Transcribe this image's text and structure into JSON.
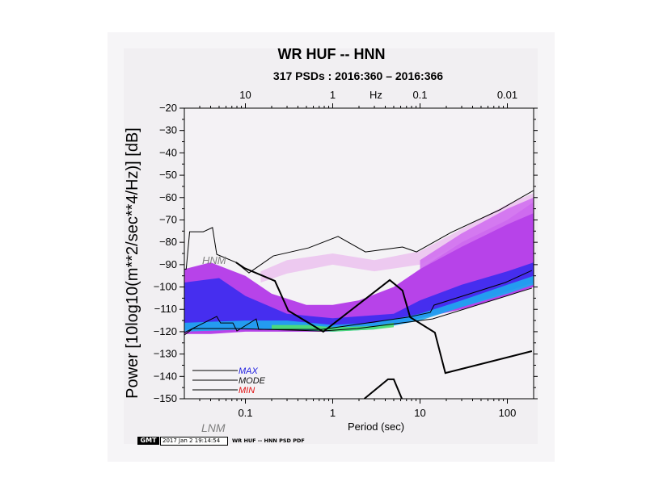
{
  "chart_data": {
    "type": "heatmap",
    "title": "WR HUF -- HNN",
    "subtitle": "317 PSDs : 2016:360 – 2016:366",
    "xlabel": "Period (sec)",
    "ylabel": "Power [10log10(m**2/sec**4/Hz)] [dB]",
    "top_axis_label": "Hz",
    "x_scale": "log",
    "xlim": [
      0.02,
      200
    ],
    "ylim": [
      -150,
      -20
    ],
    "x_ticks": [
      {
        "v": 0.1,
        "label": "0.1"
      },
      {
        "v": 1,
        "label": "1"
      },
      {
        "v": 10,
        "label": "10"
      },
      {
        "v": 100,
        "label": "100"
      }
    ],
    "top_ticks": [
      {
        "v": 0.1,
        "label": "10"
      },
      {
        "v": 1,
        "label": "1"
      },
      {
        "v": 10,
        "label": "0.1"
      },
      {
        "v": 100,
        "label": "0.01"
      }
    ],
    "y_ticks": [
      -20,
      -30,
      -40,
      -50,
      -60,
      -70,
      -80,
      -90,
      -100,
      -110,
      -120,
      -130,
      -140,
      -150
    ],
    "y_tick_labels": [
      "−20",
      "−30",
      "−40",
      "−50",
      "−60",
      "−70",
      "−80",
      "−90",
      "−100",
      "−110",
      "−120",
      "−130",
      "−140",
      "−150"
    ],
    "grid": false,
    "legend": {
      "placement": "bottom-left",
      "entries": [
        {
          "label": "MAX",
          "color": "#2020e0"
        },
        {
          "label": "MODE",
          "color": "#111111"
        },
        {
          "label": "MIN",
          "color": "#e01010"
        }
      ]
    },
    "annotations": [
      {
        "label": "HNM",
        "color": "#808080"
      },
      {
        "label": "LNM",
        "color": "#808080"
      }
    ],
    "pdf_bands": [
      {
        "color": "#ecc4f0",
        "periods": [
          0.15,
          0.3,
          1,
          3,
          10,
          30,
          100,
          200
        ],
        "upper": [
          -93,
          -88,
          -85,
          -88,
          -84,
          -74,
          -63,
          -58
        ],
        "lower": [
          -98,
          -94,
          -90,
          -93,
          -90,
          -80,
          -70,
          -64
        ]
      },
      {
        "color": "#b030e8",
        "periods": [
          0.02,
          0.04,
          0.1,
          0.2,
          0.5,
          1,
          2,
          5,
          10,
          30,
          100,
          200
        ],
        "upper": [
          -92,
          -89,
          -95,
          -103,
          -108,
          -108,
          -106,
          -100,
          -92,
          -80,
          -70,
          -62
        ],
        "lower": [
          -121,
          -121,
          -120,
          -120,
          -120,
          -120,
          -119,
          -117,
          -114,
          -110,
          -104,
          -100
        ]
      },
      {
        "color": "#d070f0",
        "periods": [
          10,
          30,
          100,
          200
        ],
        "upper": [
          -88,
          -76,
          -65,
          -60
        ],
        "lower": [
          -92,
          -82,
          -72,
          -67
        ]
      },
      {
        "color": "#3a2cf0",
        "periods": [
          0.02,
          0.05,
          0.1,
          0.3,
          1,
          5,
          10,
          30,
          100,
          200
        ],
        "upper": [
          -98,
          -96,
          -104,
          -112,
          -114,
          -112,
          -106,
          -99,
          -93,
          -89
        ],
        "lower": [
          -119,
          -119,
          -119,
          -119,
          -119,
          -117,
          -114,
          -109,
          -102,
          -98
        ]
      },
      {
        "color": "#20a8f0",
        "periods": [
          0.02,
          0.1,
          0.3,
          1,
          3,
          10,
          30,
          100,
          200
        ],
        "upper": [
          -116,
          -115,
          -115,
          -117,
          -116,
          -112,
          -106,
          -99,
          -95
        ],
        "lower": [
          -120,
          -119,
          -119,
          -120,
          -119,
          -115,
          -109,
          -103,
          -99
        ]
      },
      {
        "color": "#50e070",
        "periods": [
          0.2,
          0.5,
          1,
          3,
          5
        ],
        "upper": [
          -117,
          -117,
          -118,
          -117.5,
          -116
        ],
        "lower": [
          -119,
          -119,
          -120,
          -119,
          -118
        ]
      }
    ],
    "series": [
      {
        "name": "MAX",
        "periods": [
          0.02,
          0.021,
          0.023,
          0.033,
          0.042,
          0.047,
          0.078,
          0.11,
          0.209,
          0.53,
          1.15,
          2.37,
          6.3,
          9.1,
          22.7,
          81.6,
          200
        ],
        "values": [
          -92,
          -92,
          -75.3,
          -75.3,
          -73.4,
          -85.4,
          -89,
          -93.7,
          -86.1,
          -82.5,
          -77.4,
          -84.3,
          -82.1,
          -84.3,
          -75.6,
          -65.5,
          -56.8
        ]
      },
      {
        "name": "MODE",
        "periods": [
          0.02,
          0.047,
          0.052,
          0.072,
          0.08,
          0.133,
          0.142,
          0.75,
          7.3,
          13.1,
          14.5,
          30.6,
          94.9,
          191
        ],
        "values": [
          -120.4,
          -113.2,
          -116.1,
          -116.1,
          -119.7,
          -114.3,
          -119,
          -119,
          -113.5,
          -111.4,
          -108.1,
          -104.1,
          -98,
          -92.6
        ]
      },
      {
        "name": "MIN",
        "periods": [
          0.02,
          0.025,
          0.078,
          0.75,
          1.91,
          13.9,
          191
        ],
        "values": [
          -121.5,
          -118.6,
          -118.6,
          -119.7,
          -118.6,
          -114.3,
          -100.5
        ]
      },
      {
        "name": "HNM",
        "periods": [
          0.078,
          0.097,
          0.218,
          0.31,
          0.78,
          4.5,
          6.3,
          7.7,
          14.8,
          19.5,
          191
        ],
        "values": [
          -89,
          -91.5,
          -97.3,
          -110.6,
          -120,
          -96.9,
          -101.6,
          -113.5,
          -120.4,
          -138.5,
          -128.7
        ]
      },
      {
        "name": "LNM",
        "periods": [
          2.3,
          4.3,
          5.0,
          6.2
        ],
        "values": [
          -150,
          -141.3,
          -141.3,
          -150
        ]
      }
    ]
  },
  "footer": {
    "logo": "GMT",
    "timestamp": "2017 Jan  2 19:14:54",
    "plot_title": "WR HUF -- HNN PSD PDF"
  }
}
